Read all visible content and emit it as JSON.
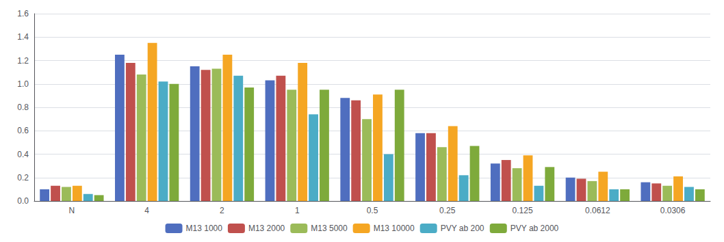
{
  "chart_data": {
    "type": "bar",
    "categories": [
      "N",
      "4",
      "2",
      "1",
      "0.5",
      "0.25",
      "0.125",
      "0.0612",
      "0.0306"
    ],
    "series": [
      {
        "name": "M13 1000",
        "color": "#4F6EBF",
        "values": [
          0.1,
          1.25,
          1.15,
          1.03,
          0.88,
          0.58,
          0.32,
          0.2,
          0.16
        ]
      },
      {
        "name": "M13 2000",
        "color": "#C0504D",
        "values": [
          0.13,
          1.18,
          1.12,
          1.07,
          0.86,
          0.58,
          0.35,
          0.19,
          0.15
        ]
      },
      {
        "name": "M13 5000",
        "color": "#9BBB59",
        "values": [
          0.12,
          1.08,
          1.13,
          0.95,
          0.7,
          0.46,
          0.28,
          0.17,
          0.13
        ]
      },
      {
        "name": "M13 10000",
        "color": "#F5A623",
        "values": [
          0.13,
          1.35,
          1.25,
          1.18,
          0.91,
          0.64,
          0.39,
          0.25,
          0.21
        ]
      },
      {
        "name": "PVY ab 200",
        "color": "#4BACC6",
        "values": [
          0.06,
          1.02,
          1.07,
          0.74,
          0.4,
          0.22,
          0.13,
          0.1,
          0.12
        ]
      },
      {
        "name": "PVY ab 2000",
        "color": "#7EAA3B",
        "values": [
          0.05,
          1.0,
          0.97,
          0.95,
          0.95,
          0.47,
          0.29,
          0.1,
          0.1
        ]
      }
    ],
    "ylim": [
      0,
      1.6
    ],
    "yticks": [
      {
        "value": 0,
        "label": "0.0"
      },
      0.2,
      0.4,
      0.6,
      0.8,
      {
        "value": 1,
        "label": "1.0"
      },
      1.2,
      1.4,
      1.6
    ],
    "grid": true,
    "legend": "bottom"
  }
}
